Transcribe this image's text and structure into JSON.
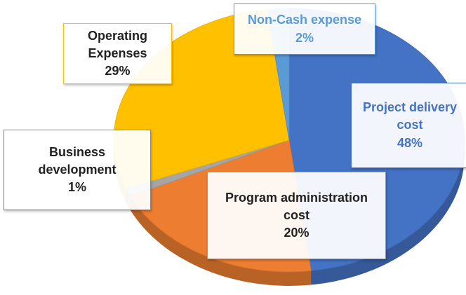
{
  "chart_data": {
    "type": "pie",
    "categories": [
      "Project delivery cost",
      "Program administration cost",
      "Business development",
      "Operating Expenses",
      "Non-Cash expense"
    ],
    "values": [
      48,
      20,
      1,
      29,
      2
    ],
    "value_labels": [
      "48%",
      "20%",
      "1%",
      "29%",
      "2%"
    ],
    "colors": [
      "#4472c4",
      "#ed7d31",
      "#a5a5a5",
      "#ffc000",
      "#5b9bd5"
    ]
  }
}
